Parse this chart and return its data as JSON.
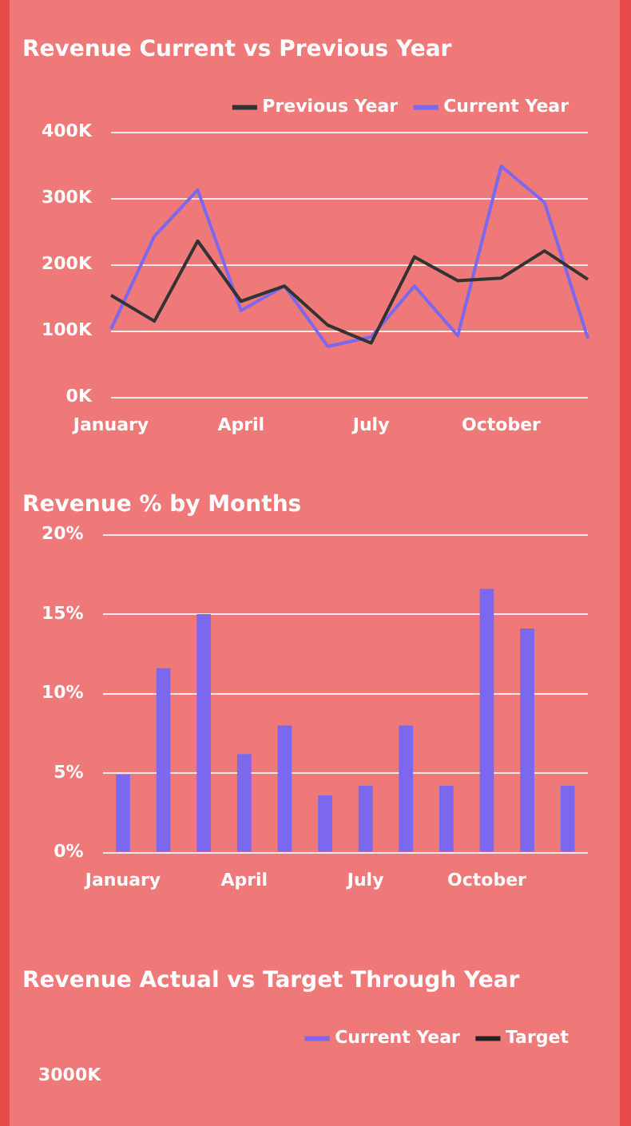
{
  "chart_data": [
    {
      "type": "line",
      "title": "Revenue Current vs Previous Year",
      "categories": [
        "January",
        null,
        null,
        "April",
        null,
        null,
        "July",
        null,
        null,
        "October",
        null,
        null
      ],
      "series": [
        {
          "name": "Previous Year",
          "color": "#333333",
          "values": [
            154000,
            115000,
            236000,
            145000,
            168000,
            109000,
            82000,
            212000,
            176000,
            180000,
            221000,
            178000
          ]
        },
        {
          "name": "Current Year",
          "color": "#7b68ee",
          "values": [
            103000,
            243000,
            313000,
            131000,
            168000,
            77000,
            91000,
            168000,
            93000,
            349000,
            294000,
            89000
          ]
        }
      ],
      "ylim": [
        0,
        400000
      ],
      "yticks": [
        {
          "value": 0,
          "label": "0K"
        },
        {
          "value": 100000,
          "label": "100K"
        },
        {
          "value": 200000,
          "label": "200K"
        },
        {
          "value": 300000,
          "label": "300K"
        },
        {
          "value": 400000,
          "label": "400K"
        }
      ],
      "grid": "y",
      "legend": "top right",
      "marker": "none"
    },
    {
      "type": "bar",
      "title": "Revenue % by Months",
      "categories": [
        "January",
        null,
        null,
        "April",
        null,
        null,
        "July",
        null,
        null,
        "October",
        null,
        null
      ],
      "values": [
        4.9,
        11.6,
        15.0,
        6.2,
        8.0,
        3.6,
        4.2,
        8.0,
        4.2,
        16.6,
        14.1,
        4.2
      ],
      "color": "#7b68ee",
      "ylim": [
        0,
        20
      ],
      "yticks": [
        {
          "value": 0,
          "label": "0%"
        },
        {
          "value": 5,
          "label": "5%"
        },
        {
          "value": 10,
          "label": "10%"
        },
        {
          "value": 15,
          "label": "15%"
        },
        {
          "value": 20,
          "label": "20%"
        }
      ],
      "grid": "y"
    },
    {
      "type": "other",
      "title": "Revenue Actual vs Target Through Year",
      "series": [
        {
          "name": "Current Year",
          "color": "#7b68ee"
        },
        {
          "name": "Target",
          "color": "#222222"
        }
      ],
      "annotations": [
        "3000K"
      ],
      "legend": "top right"
    }
  ]
}
